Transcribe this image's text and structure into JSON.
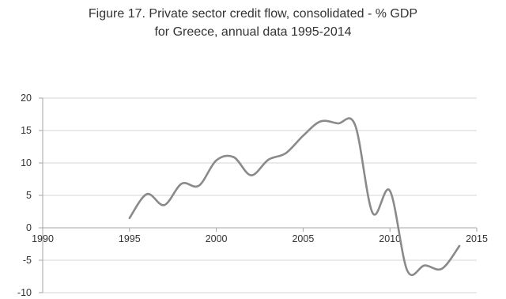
{
  "chart_data": {
    "type": "line",
    "title_lines": [
      "Figure 17. Private sector credit flow, consolidated - % GDP",
      "for Greece, annual data 1995-2014"
    ],
    "xlabel": "",
    "ylabel": "",
    "xlim": [
      1990,
      2015
    ],
    "ylim": [
      -10,
      20
    ],
    "xticks": [
      1990,
      1995,
      2000,
      2005,
      2010,
      2015
    ],
    "yticks": [
      -10,
      -5,
      0,
      5,
      10,
      15,
      20
    ],
    "grid": "horizontal",
    "legend": "none",
    "line_color": "#8a8a8a",
    "x": [
      1995,
      1996,
      1997,
      1998,
      1999,
      2000,
      2001,
      2002,
      2003,
      2004,
      2005,
      2006,
      2007,
      2008,
      2009,
      2010,
      2011,
      2012,
      2013,
      2014
    ],
    "series": [
      {
        "values": [
          1.5,
          5.2,
          3.5,
          6.8,
          6.5,
          10.4,
          10.9,
          8.1,
          10.5,
          11.5,
          14.2,
          16.4,
          16.1,
          15.8,
          2.3,
          5.7,
          -6.6,
          -5.8,
          -6.3,
          -2.8
        ]
      }
    ]
  }
}
